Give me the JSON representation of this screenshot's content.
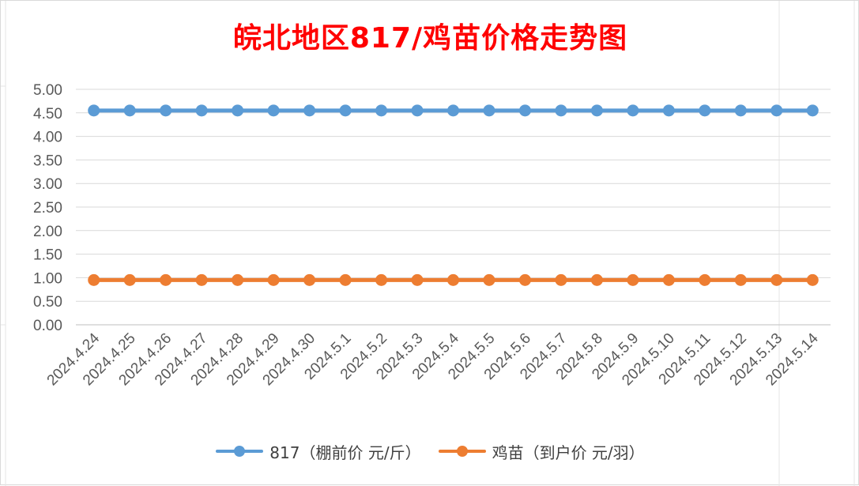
{
  "chart_data": {
    "type": "line",
    "title": "皖北地区817/鸡苗价格走势图",
    "categories": [
      "2024.4.24",
      "2024.4.25",
      "2024.4.26",
      "2024.4.27",
      "2024.4.28",
      "2024.4.29",
      "2024.4.30",
      "2024.5.1",
      "2024.5.2",
      "2024.5.3",
      "2024.5.4",
      "2024.5.5",
      "2024.5.6",
      "2024.5.7",
      "2024.5.8",
      "2024.5.9",
      "2024.5.10",
      "2024.5.11",
      "2024.5.12",
      "2024.5.13",
      "2024.5.14"
    ],
    "series": [
      {
        "name": "817（棚前价 元/斤）",
        "color": "#5b9bd5",
        "values": [
          4.55,
          4.55,
          4.55,
          4.55,
          4.55,
          4.55,
          4.55,
          4.55,
          4.55,
          4.55,
          4.55,
          4.55,
          4.55,
          4.55,
          4.55,
          4.55,
          4.55,
          4.55,
          4.55,
          4.55,
          4.55
        ]
      },
      {
        "name": "鸡苗（到户价 元/羽）",
        "color": "#ed7d31",
        "values": [
          0.95,
          0.95,
          0.95,
          0.95,
          0.95,
          0.95,
          0.95,
          0.95,
          0.95,
          0.95,
          0.95,
          0.95,
          0.95,
          0.95,
          0.95,
          0.95,
          0.95,
          0.95,
          0.95,
          0.95,
          0.95
        ]
      }
    ],
    "yticks": [
      "0.00",
      "0.50",
      "1.00",
      "1.50",
      "2.00",
      "2.50",
      "3.00",
      "3.50",
      "4.00",
      "4.50",
      "5.00"
    ],
    "ylim": [
      0,
      5
    ],
    "grid": true,
    "legend": "bottom"
  }
}
